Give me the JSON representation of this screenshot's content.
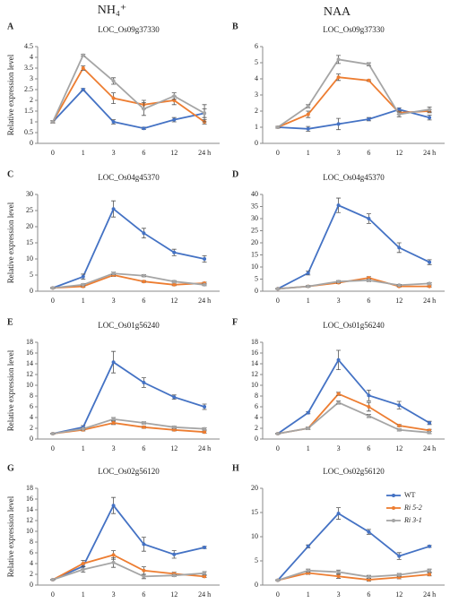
{
  "column_headers": [
    "NH₄⁺",
    "NAA"
  ],
  "chart_data": [
    {
      "type": "line",
      "label": "A",
      "title": "LOC_Os09g37330",
      "ylabel": "Relative expression level",
      "categories": [
        "0",
        "1",
        "3",
        "6",
        "12",
        "24 h"
      ],
      "ylim": [
        0,
        4.5
      ],
      "yticks": [
        0,
        0.5,
        1,
        1.5,
        2,
        2.5,
        3,
        3.5,
        4,
        4.5
      ],
      "series": [
        {
          "color": "#4472c4",
          "values": [
            1,
            2.5,
            1,
            0.7,
            1.1,
            1.4
          ],
          "errors": [
            0.05,
            0.05,
            0.1,
            0.05,
            0.1,
            0.2
          ]
        },
        {
          "color": "#ed7d31",
          "values": [
            1,
            3.5,
            2.1,
            1.8,
            2.0,
            1.0
          ],
          "errors": [
            0.05,
            0.1,
            0.25,
            0.2,
            0.2,
            0.1
          ]
        },
        {
          "color": "#a5a5a5",
          "values": [
            1,
            4.1,
            2.9,
            1.6,
            2.2,
            1.4
          ],
          "errors": [
            0.05,
            0.05,
            0.15,
            0.3,
            0.15,
            0.4
          ]
        }
      ]
    },
    {
      "type": "line",
      "label": "B",
      "title": "LOC_Os09g37330",
      "categories": [
        "0",
        "1",
        "3",
        "6",
        "12",
        "24 h"
      ],
      "ylim": [
        0,
        6
      ],
      "yticks": [
        0,
        1,
        2,
        3,
        4,
        5,
        6
      ],
      "series": [
        {
          "color": "#4472c4",
          "values": [
            1,
            0.9,
            1.2,
            1.5,
            2.1,
            1.6
          ],
          "errors": [
            0.05,
            0.15,
            0.35,
            0.1,
            0.1,
            0.15
          ]
        },
        {
          "color": "#ed7d31",
          "values": [
            1,
            1.8,
            4.1,
            3.9,
            1.9,
            2.0
          ],
          "errors": [
            0.05,
            0.2,
            0.2,
            0.05,
            0.1,
            0.1
          ]
        },
        {
          "color": "#a5a5a5",
          "values": [
            1,
            2.3,
            5.2,
            4.9,
            1.8,
            2.1
          ],
          "errors": [
            0.05,
            0.1,
            0.25,
            0.1,
            0.15,
            0.15
          ]
        }
      ]
    },
    {
      "type": "line",
      "label": "C",
      "title": "LOC_Os04g45370",
      "ylabel": "Relative expression level",
      "categories": [
        "0",
        "1",
        "3",
        "6",
        "12",
        "24 h"
      ],
      "ylim": [
        0,
        30
      ],
      "yticks": [
        0,
        5,
        10,
        15,
        20,
        25,
        30
      ],
      "series": [
        {
          "color": "#4472c4",
          "values": [
            1,
            4.5,
            25.5,
            18,
            12,
            10
          ],
          "errors": [
            0.2,
            0.8,
            2.5,
            1.5,
            1,
            1
          ]
        },
        {
          "color": "#ed7d31",
          "values": [
            1,
            1.5,
            5,
            3,
            2,
            2.5
          ],
          "errors": [
            0.1,
            0.3,
            0.4,
            0.3,
            0.3,
            0.3
          ]
        },
        {
          "color": "#a5a5a5",
          "values": [
            1,
            2,
            5.5,
            4.8,
            3,
            2
          ],
          "errors": [
            0.1,
            0.3,
            0.4,
            0.3,
            0.3,
            0.3
          ]
        }
      ]
    },
    {
      "type": "line",
      "label": "D",
      "title": "LOC_Os04g45370",
      "categories": [
        "0",
        "1",
        "3",
        "6",
        "12",
        "24 h"
      ],
      "ylim": [
        0,
        40
      ],
      "yticks": [
        0,
        5,
        10,
        15,
        20,
        25,
        30,
        35,
        40
      ],
      "series": [
        {
          "color": "#4472c4",
          "values": [
            1,
            7.5,
            35.5,
            30,
            18,
            12
          ],
          "errors": [
            0.2,
            0.8,
            3,
            2,
            2,
            1
          ]
        },
        {
          "color": "#ed7d31",
          "values": [
            1,
            2,
            3.5,
            5.5,
            2,
            2
          ],
          "errors": [
            0.1,
            0.3,
            0.4,
            0.5,
            0.3,
            0.3
          ]
        },
        {
          "color": "#a5a5a5",
          "values": [
            1,
            2,
            4,
            4.5,
            2.5,
            3.2
          ],
          "errors": [
            0.1,
            0.3,
            0.4,
            0.5,
            0.3,
            0.3
          ]
        }
      ]
    },
    {
      "type": "line",
      "label": "E",
      "title": "LOC_Os01g56240",
      "ylabel": "Relative expression level",
      "categories": [
        "0",
        "1",
        "3",
        "6",
        "12",
        "24 h"
      ],
      "ylim": [
        0,
        18
      ],
      "yticks": [
        0,
        2,
        4,
        6,
        8,
        10,
        12,
        14,
        16,
        18
      ],
      "series": [
        {
          "color": "#4472c4",
          "values": [
            1,
            2.2,
            14.3,
            10.5,
            7.8,
            6
          ],
          "errors": [
            0.1,
            0.3,
            2,
            0.9,
            0.4,
            0.5
          ]
        },
        {
          "color": "#ed7d31",
          "values": [
            1,
            1.7,
            3,
            2.2,
            1.7,
            1.3
          ],
          "errors": [
            0.1,
            0.2,
            0.3,
            0.2,
            0.2,
            0.2
          ]
        },
        {
          "color": "#a5a5a5",
          "values": [
            1,
            1.9,
            3.7,
            3,
            2.2,
            1.9
          ],
          "errors": [
            0.1,
            0.2,
            0.3,
            0.2,
            0.2,
            0.2
          ]
        }
      ]
    },
    {
      "type": "line",
      "label": "F",
      "title": "LOC_Os01g56240",
      "categories": [
        "0",
        "1",
        "3",
        "6",
        "12",
        "24 h"
      ],
      "ylim": [
        0,
        18
      ],
      "yticks": [
        0,
        2,
        4,
        6,
        8,
        10,
        12,
        14,
        16,
        18
      ],
      "series": [
        {
          "color": "#4472c4",
          "values": [
            1,
            4.9,
            14.7,
            8.1,
            6.3,
            3
          ],
          "errors": [
            0.1,
            0.2,
            1.8,
            1,
            0.7,
            0.3
          ]
        },
        {
          "color": "#ed7d31",
          "values": [
            1,
            2,
            8.4,
            6,
            2.5,
            1.6
          ],
          "errors": [
            0.1,
            0.2,
            0.3,
            0.8,
            0.2,
            0.2
          ]
        },
        {
          "color": "#a5a5a5",
          "values": [
            1,
            2,
            6.8,
            4.3,
            1.7,
            1.2
          ],
          "errors": [
            0.1,
            0.2,
            0.3,
            0.3,
            0.2,
            0.2
          ]
        }
      ]
    },
    {
      "type": "line",
      "label": "G",
      "title": "LOC_Os02g56120",
      "ylabel": "Relative expression level",
      "categories": [
        "0",
        "1",
        "3",
        "6",
        "12",
        "24 h"
      ],
      "ylim": [
        0,
        18
      ],
      "yticks": [
        0,
        2,
        4,
        6,
        8,
        10,
        12,
        14,
        16,
        18
      ],
      "series": [
        {
          "color": "#4472c4",
          "values": [
            1,
            3.5,
            14.8,
            7.6,
            5.7,
            7
          ],
          "errors": [
            0.1,
            0.5,
            1.5,
            1.3,
            0.7,
            0.2
          ]
        },
        {
          "color": "#ed7d31",
          "values": [
            1,
            4,
            5.6,
            2.7,
            2.1,
            1.6
          ],
          "errors": [
            0.1,
            0.6,
            0.8,
            0.7,
            0.3,
            0.2
          ]
        },
        {
          "color": "#a5a5a5",
          "values": [
            1,
            2.9,
            4.2,
            1.6,
            1.8,
            2.2
          ],
          "errors": [
            0.1,
            0.5,
            0.9,
            0.4,
            0.2,
            0.3
          ]
        }
      ]
    },
    {
      "type": "line",
      "label": "H",
      "title": "LOC_Os02g56120",
      "categories": [
        "0",
        "1",
        "3",
        "6",
        "12",
        "24 h"
      ],
      "ylim": [
        0,
        20
      ],
      "yticks": [
        0,
        5,
        10,
        15,
        20
      ],
      "legend": "upper right",
      "series": [
        {
          "name": "WT",
          "color": "#4472c4",
          "values": [
            1,
            8,
            14.8,
            11,
            6,
            8
          ],
          "errors": [
            0.1,
            0.3,
            1.2,
            0.5,
            0.7,
            0.2
          ]
        },
        {
          "name": "Ri 5-2",
          "color": "#ed7d31",
          "values": [
            1,
            2.5,
            1.8,
            1.1,
            1.6,
            2.2
          ],
          "errors": [
            0.1,
            0.3,
            0.4,
            0.3,
            0.3,
            0.3
          ]
        },
        {
          "name": "Ri 3-1",
          "color": "#a5a5a5",
          "values": [
            1,
            3,
            2.7,
            1.7,
            2.1,
            3
          ],
          "errors": [
            0.1,
            0.3,
            0.4,
            0.3,
            0.3,
            0.3
          ]
        }
      ]
    }
  ]
}
